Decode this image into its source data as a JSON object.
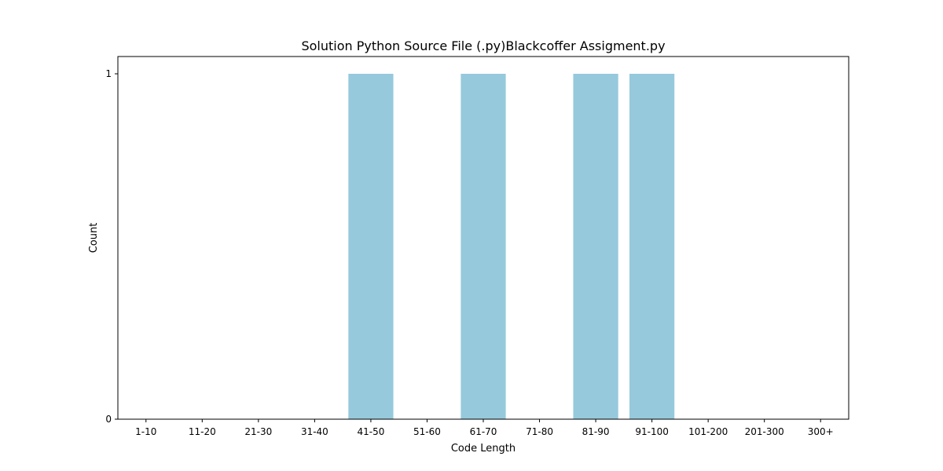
{
  "chart_data": {
    "type": "bar",
    "title": "Solution Python Source File (.py)Blackcoffer Assigment.py",
    "xlabel": "Code Length",
    "ylabel": "Count",
    "categories": [
      "1-10",
      "11-20",
      "21-30",
      "31-40",
      "41-50",
      "51-60",
      "61-70",
      "71-80",
      "81-90",
      "91-100",
      "101-200",
      "201-300",
      "300+"
    ],
    "values": [
      0,
      0,
      0,
      0,
      1,
      0,
      1,
      0,
      1,
      1,
      0,
      0,
      0
    ],
    "yticks": [
      0,
      1
    ],
    "ylim": [
      0,
      1.05
    ],
    "grid": false,
    "bar_color": "#96c9dc"
  }
}
